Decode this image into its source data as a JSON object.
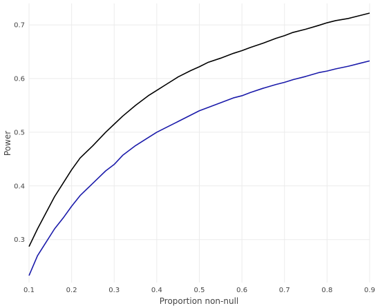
{
  "chart_data": {
    "type": "line",
    "title": "",
    "xlabel": "Proportion non-null",
    "ylabel": "Power",
    "xlim": [
      0.1,
      0.9
    ],
    "ylim": [
      0.22,
      0.74
    ],
    "x_ticks": [
      0.1,
      0.2,
      0.3,
      0.4,
      0.5,
      0.6,
      0.7,
      0.8,
      0.9
    ],
    "y_ticks": [
      0.3,
      0.4,
      0.5,
      0.6,
      0.7
    ],
    "grid": true,
    "legend": "none",
    "x": [
      0.1,
      0.12,
      0.14,
      0.16,
      0.18,
      0.2,
      0.22,
      0.25,
      0.28,
      0.3,
      0.32,
      0.35,
      0.38,
      0.4,
      0.42,
      0.45,
      0.48,
      0.5,
      0.52,
      0.55,
      0.58,
      0.6,
      0.62,
      0.65,
      0.68,
      0.7,
      0.72,
      0.75,
      0.78,
      0.8,
      0.82,
      0.85,
      0.88,
      0.9
    ],
    "series": [
      {
        "color": "#000000",
        "values": [
          0.287,
          0.32,
          0.35,
          0.38,
          0.405,
          0.43,
          0.452,
          0.475,
          0.5,
          0.515,
          0.53,
          0.55,
          0.568,
          0.578,
          0.588,
          0.603,
          0.615,
          0.622,
          0.63,
          0.638,
          0.647,
          0.652,
          0.658,
          0.666,
          0.675,
          0.68,
          0.686,
          0.692,
          0.699,
          0.704,
          0.708,
          0.712,
          0.718,
          0.722
        ]
      },
      {
        "color": "#1a1aaa",
        "values": [
          0.233,
          0.27,
          0.295,
          0.32,
          0.34,
          0.362,
          0.382,
          0.405,
          0.428,
          0.44,
          0.457,
          0.475,
          0.49,
          0.5,
          0.508,
          0.52,
          0.532,
          0.54,
          0.546,
          0.555,
          0.564,
          0.568,
          0.574,
          0.582,
          0.589,
          0.593,
          0.598,
          0.604,
          0.611,
          0.614,
          0.618,
          0.623,
          0.629,
          0.633
        ]
      }
    ]
  }
}
